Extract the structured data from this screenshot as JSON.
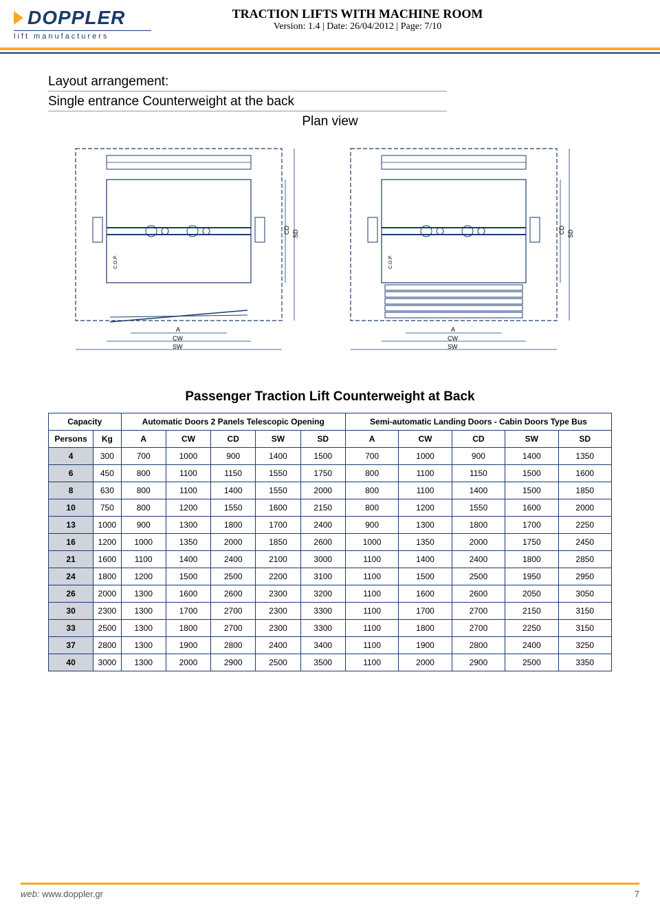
{
  "header": {
    "logo_text": "DOPPLER",
    "logo_sub": "lift manufacturers",
    "title": "TRACTION LIFTS WITH MACHINE ROOM",
    "version_label": "Version:",
    "version_value": "1.4",
    "date_label": "Date:",
    "date_value": "26/04/2012",
    "page_label": "Page:",
    "page_value": "7/10"
  },
  "section": {
    "heading_line1": "Layout arrangement:",
    "heading_line2": "Single entrance Counterweight at the back",
    "plan_view": "Plan view"
  },
  "diagram_labels": {
    "a": "A",
    "cw": "CW",
    "sw": "SW",
    "cd": "CD",
    "sd": "SD",
    "cop": "C.O.P."
  },
  "table": {
    "title": "Passenger Traction Lift Counterweight at Back",
    "capacity_label": "Capacity",
    "auto_header": "Automatic Doors 2 Panels Telescopic Opening",
    "semi_header": "Semi-automatic Landing Doors - Cabin Doors Type Bus",
    "persons_label": "Persons",
    "kg_label": "Kg",
    "col_a": "A",
    "col_cw": "CW",
    "col_cd": "CD",
    "col_sw": "SW",
    "col_sd": "SD",
    "rows": [
      {
        "persons": "4",
        "kg": "300",
        "auto": [
          "700",
          "1000",
          "900",
          "1400",
          "1500"
        ],
        "semi": [
          "700",
          "1000",
          "900",
          "1400",
          "1350"
        ]
      },
      {
        "persons": "6",
        "kg": "450",
        "auto": [
          "800",
          "1100",
          "1150",
          "1550",
          "1750"
        ],
        "semi": [
          "800",
          "1100",
          "1150",
          "1500",
          "1600"
        ]
      },
      {
        "persons": "8",
        "kg": "630",
        "auto": [
          "800",
          "1100",
          "1400",
          "1550",
          "2000"
        ],
        "semi": [
          "800",
          "1100",
          "1400",
          "1500",
          "1850"
        ]
      },
      {
        "persons": "10",
        "kg": "750",
        "auto": [
          "800",
          "1200",
          "1550",
          "1600",
          "2150"
        ],
        "semi": [
          "800",
          "1200",
          "1550",
          "1600",
          "2000"
        ]
      },
      {
        "persons": "13",
        "kg": "1000",
        "auto": [
          "900",
          "1300",
          "1800",
          "1700",
          "2400"
        ],
        "semi": [
          "900",
          "1300",
          "1800",
          "1700",
          "2250"
        ]
      },
      {
        "persons": "16",
        "kg": "1200",
        "auto": [
          "1000",
          "1350",
          "2000",
          "1850",
          "2600"
        ],
        "semi": [
          "1000",
          "1350",
          "2000",
          "1750",
          "2450"
        ]
      },
      {
        "persons": "21",
        "kg": "1600",
        "auto": [
          "1100",
          "1400",
          "2400",
          "2100",
          "3000"
        ],
        "semi": [
          "1100",
          "1400",
          "2400",
          "1800",
          "2850"
        ]
      },
      {
        "persons": "24",
        "kg": "1800",
        "auto": [
          "1200",
          "1500",
          "2500",
          "2200",
          "3100"
        ],
        "semi": [
          "1100",
          "1500",
          "2500",
          "1950",
          "2950"
        ]
      },
      {
        "persons": "26",
        "kg": "2000",
        "auto": [
          "1300",
          "1600",
          "2600",
          "2300",
          "3200"
        ],
        "semi": [
          "1100",
          "1600",
          "2600",
          "2050",
          "3050"
        ]
      },
      {
        "persons": "30",
        "kg": "2300",
        "auto": [
          "1300",
          "1700",
          "2700",
          "2300",
          "3300"
        ],
        "semi": [
          "1100",
          "1700",
          "2700",
          "2150",
          "3150"
        ]
      },
      {
        "persons": "33",
        "kg": "2500",
        "auto": [
          "1300",
          "1800",
          "2700",
          "2300",
          "3300"
        ],
        "semi": [
          "1100",
          "1800",
          "2700",
          "2250",
          "3150"
        ]
      },
      {
        "persons": "37",
        "kg": "2800",
        "auto": [
          "1300",
          "1900",
          "2800",
          "2400",
          "3400"
        ],
        "semi": [
          "1100",
          "1900",
          "2800",
          "2400",
          "3250"
        ]
      },
      {
        "persons": "40",
        "kg": "3000",
        "auto": [
          "1300",
          "2000",
          "2900",
          "2500",
          "3500"
        ],
        "semi": [
          "1100",
          "2000",
          "2900",
          "2500",
          "3350"
        ]
      }
    ]
  },
  "footer": {
    "web_label": "web:",
    "web_value": "www.doppler.gr",
    "page_num": "7"
  },
  "colors": {
    "brand_blue": "#1a3a6e",
    "brand_orange": "#f9a825",
    "table_border": "#1a3a6e",
    "persons_bg": "#d0d4dc"
  }
}
